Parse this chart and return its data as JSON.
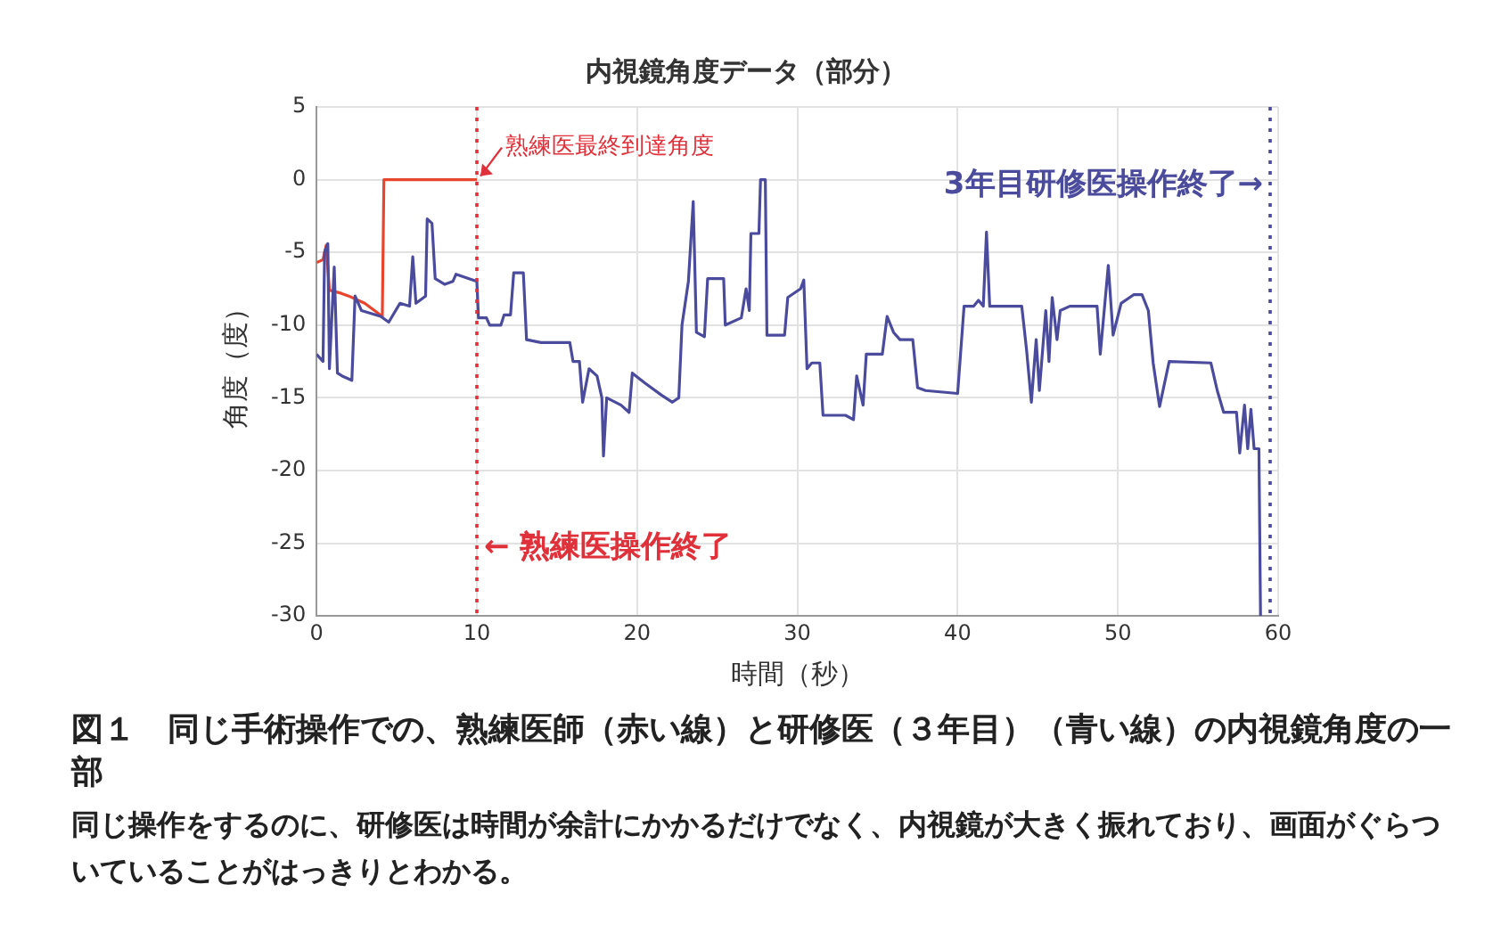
{
  "chart_data": {
    "type": "line",
    "title": "内視鏡角度データ（部分）",
    "xlabel": "時間（秒）",
    "ylabel": "角度（度）",
    "xlim": [
      0,
      60
    ],
    "xticks": [
      0,
      10,
      20,
      30,
      40,
      50,
      60
    ],
    "ylim": [
      -30,
      5
    ],
    "yticks": [
      -30,
      -25,
      -20,
      -15,
      -10,
      -5,
      0,
      5
    ],
    "grid": true,
    "legend": false,
    "marker": "none",
    "line_style": "solid",
    "series": [
      {
        "color": "#4b4b9e",
        "x": [
          0,
          0.4,
          0.5,
          0.7,
          0.8,
          1.1,
          1.3,
          1.6,
          2.2,
          2.4,
          2.8,
          4,
          4.5,
          5.2,
          5.8,
          6,
          6.2,
          6.8,
          6.9,
          7.2,
          7.4,
          8,
          8.5,
          8.7,
          10,
          10.1,
          10.6,
          10.8,
          11.5,
          11.7,
          12.1,
          12.3,
          12.9,
          13.1,
          14,
          15.8,
          16,
          16.4,
          16.6,
          17,
          17.5,
          17.8,
          17.9,
          18.1,
          19,
          19.5,
          19.7,
          20.5,
          21.5,
          22.2,
          22.6,
          22.8,
          23.2,
          23.5,
          23.7,
          24.2,
          24.4,
          25.4,
          25.5,
          26.5,
          26.8,
          27,
          27.1,
          27.6,
          27.7,
          28,
          28.1,
          29.2,
          29.4,
          30.2,
          30.4,
          30.6,
          30.9,
          31.4,
          31.6,
          33,
          33.5,
          33.7,
          34.1,
          34.3,
          35.3,
          35.6,
          36,
          36.4,
          37.2,
          37.5,
          38,
          40,
          40.4,
          41,
          41.3,
          41.6,
          41.8,
          42,
          44,
          44.3,
          44.6,
          44.9,
          45.1,
          45.5,
          45.7,
          45.9,
          46.2,
          46.4,
          47,
          48.7,
          48.9,
          49.4,
          49.7,
          50.2,
          51,
          51.5,
          51.9,
          52.2,
          52.6,
          53.2,
          55.8,
          56.2,
          56.6,
          57.4,
          57.6,
          57.9,
          58.1,
          58.3,
          58.5,
          58.8,
          58.9
        ],
        "values": [
          -12,
          -12.5,
          -5,
          -4.4,
          -13,
          -6,
          -13.3,
          -13.5,
          -13.8,
          -8,
          -9,
          -9.4,
          -9.8,
          -8.5,
          -8.7,
          -5.3,
          -8.5,
          -8,
          -2.7,
          -3,
          -6.8,
          -7.2,
          -7,
          -6.5,
          -7,
          -9.5,
          -9.5,
          -10,
          -10,
          -9.3,
          -9.3,
          -6.4,
          -6.4,
          -11,
          -11.2,
          -11.2,
          -12.5,
          -12.5,
          -15.3,
          -13,
          -13.5,
          -15,
          -19,
          -15,
          -15.5,
          -16,
          -13.3,
          -14,
          -14.8,
          -15.3,
          -15,
          -10,
          -7,
          -1.5,
          -10.5,
          -10.8,
          -6.8,
          -6.8,
          -10,
          -9.5,
          -7.5,
          -9,
          -3.7,
          -3.7,
          0,
          0,
          -10.7,
          -10.7,
          -8.1,
          -7.5,
          -6.9,
          -13,
          -12.6,
          -12.6,
          -16.2,
          -16.2,
          -16.5,
          -13.5,
          -15.5,
          -12,
          -12,
          -9.4,
          -10.5,
          -11,
          -11,
          -14.3,
          -14.5,
          -14.7,
          -8.7,
          -8.7,
          -8.3,
          -8.7,
          -3.6,
          -8.7,
          -8.7,
          -11.7,
          -15.3,
          -11,
          -14.5,
          -9,
          -12.5,
          -8.1,
          -11,
          -9,
          -8.7,
          -8.7,
          -12,
          -5.9,
          -10.7,
          -8.5,
          -7.9,
          -7.9,
          -9,
          -12.6,
          -15.6,
          -12.5,
          -12.6,
          -14.5,
          -16,
          -16,
          -18.8,
          -15.5,
          -18.5,
          -15.8,
          -18.5,
          -18.5,
          -30
        ]
      },
      {
        "color": "#e8452f",
        "x": [
          0,
          0.4,
          0.6,
          0.8,
          1.5,
          2,
          3,
          4.1,
          4.2,
          10
        ],
        "values": [
          -5.7,
          -5.5,
          -4.5,
          -7.6,
          -7.8,
          -8,
          -8.5,
          -9.4,
          0,
          0
        ]
      }
    ],
    "ref_lines": [
      {
        "axis": "x",
        "value": 10,
        "label": "← 熟練医操作終了",
        "color": "#e0303a",
        "line_style": "dotted"
      },
      {
        "axis": "x",
        "value": 59.5,
        "label": "3年目研修医操作終了→",
        "color": "#4b4b9e",
        "line_style": "dotted"
      }
    ],
    "annotations": [
      {
        "text": "熟練医最終到達角度",
        "x": 10,
        "y": 0
      },
      "図１　同じ手術操作での、熟練医師（赤い線）と研修医（３年目）（青い線）の内視鏡角度の一部",
      "同じ操作をするのに、研修医は時間が余計にかかるだけでなく、内視鏡が大きく振れており、画面がぐらついていることがはっきりとわかる。"
    ]
  }
}
